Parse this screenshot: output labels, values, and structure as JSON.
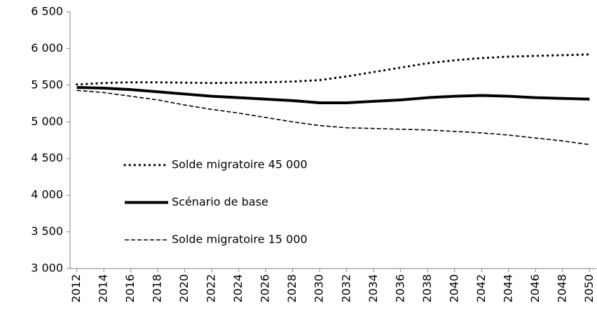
{
  "chart_data": {
    "type": "line",
    "x": [
      2012,
      2014,
      2016,
      2018,
      2020,
      2022,
      2024,
      2026,
      2028,
      2030,
      2032,
      2034,
      2036,
      2038,
      2040,
      2042,
      2044,
      2046,
      2048,
      2050
    ],
    "series": [
      {
        "name": "Solde migratoire 45 000",
        "color": "#000000",
        "dash": "dotted",
        "values": [
          5510,
          5530,
          5540,
          5540,
          5535,
          5530,
          5535,
          5540,
          5550,
          5570,
          5620,
          5680,
          5740,
          5800,
          5840,
          5870,
          5890,
          5900,
          5910,
          5920
        ]
      },
      {
        "name": "Scénario de base",
        "color": "#000000",
        "dash": "solid",
        "values": [
          5470,
          5460,
          5440,
          5410,
          5380,
          5350,
          5330,
          5310,
          5290,
          5260,
          5260,
          5280,
          5300,
          5330,
          5350,
          5360,
          5350,
          5330,
          5320,
          5310
        ]
      },
      {
        "name": "Solde migratoire 15 000",
        "color": "#000000",
        "dash": "dashed",
        "values": [
          5430,
          5400,
          5350,
          5300,
          5230,
          5170,
          5120,
          5060,
          5000,
          4950,
          4920,
          4910,
          4900,
          4890,
          4870,
          4850,
          4820,
          4780,
          4740,
          4690
        ]
      }
    ],
    "xlim": [
      2011.5,
      2050.5
    ],
    "xticks": [
      2012,
      2014,
      2016,
      2018,
      2020,
      2022,
      2024,
      2026,
      2028,
      2030,
      2032,
      2034,
      2036,
      2038,
      2040,
      2042,
      2044,
      2046,
      2048,
      2050
    ],
    "ylim": [
      3000,
      6500
    ],
    "yticks": [
      {
        "value": 3000,
        "label": "3 000"
      },
      {
        "value": 3500,
        "label": "3 500"
      },
      {
        "value": 4000,
        "label": "4 000"
      },
      {
        "value": 4500,
        "label": "4 500"
      },
      {
        "value": 5000,
        "label": "5 000"
      },
      {
        "value": 5500,
        "label": "5 500"
      },
      {
        "value": 6000,
        "label": "6 000"
      },
      {
        "value": 6500,
        "label": "6 500"
      }
    ],
    "grid": false,
    "legend": "left"
  }
}
